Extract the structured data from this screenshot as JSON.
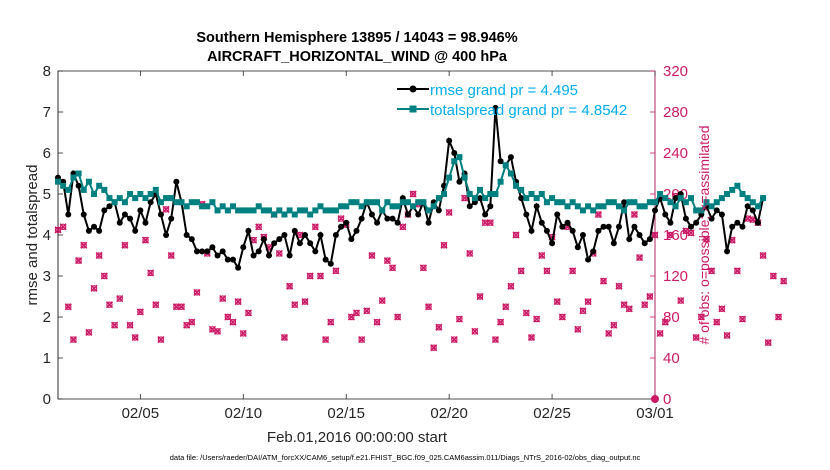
{
  "chart_data": {
    "type": "line",
    "title_line1": "Southern Hemisphere 13895 / 14043 = 98.946%",
    "title_line2": "AIRCRAFT_HORIZONTAL_WIND @ 400 hPa",
    "xlabel": "Feb.01,2016 00:00:00 start",
    "ylabel": "rmse and totalspread",
    "ylabel_right": "# of obs: o=possible; ×=assimilated",
    "footnote": "data file: /Users/raeder/DAI/ATM_forcXX/CAM6_setup/f.e21.FHIST_BGC.f09_025.CAM6assim.011/Diags_NTrS_2016-02/obs_diag_output.nc",
    "xlim": [
      0,
      29
    ],
    "ylim": [
      0,
      8
    ],
    "ylim_right": [
      0,
      320
    ],
    "x_ticks": [
      {
        "day": 4,
        "label": "02/05"
      },
      {
        "day": 9,
        "label": "02/10"
      },
      {
        "day": 14,
        "label": "02/15"
      },
      {
        "day": 19,
        "label": "02/20"
      },
      {
        "day": 24,
        "label": "02/25"
      },
      {
        "day": 29,
        "label": "03/01"
      }
    ],
    "y_ticks": [
      "0",
      "1",
      "2",
      "3",
      "4",
      "5",
      "6",
      "7",
      "8"
    ],
    "y_ticks_right": [
      "0",
      "40",
      "80",
      "120",
      "160",
      "200",
      "240",
      "280",
      "320"
    ],
    "series": [
      {
        "name": "rmse grand pr = 4.495",
        "color": "#000000",
        "x_start": 0,
        "x_step": 0.25,
        "values": [
          5.4,
          5.3,
          4.5,
          5.5,
          5.2,
          4.5,
          4.1,
          4.2,
          4.1,
          4.6,
          4.7,
          4.8,
          4.3,
          4.5,
          4.4,
          4.1,
          4.6,
          4.3,
          4.8,
          5.0,
          4.5,
          4.0,
          4.4,
          5.3,
          4.8,
          4.0,
          3.9,
          3.6,
          3.6,
          3.6,
          3.7,
          3.5,
          3.6,
          3.4,
          3.4,
          3.2,
          3.7,
          4.1,
          3.5,
          3.6,
          3.9,
          3.5,
          3.8,
          3.9,
          4.0,
          3.5,
          4.1,
          3.8,
          4.0,
          3.8,
          3.6,
          4.0,
          3.4,
          3.3,
          4.0,
          4.2,
          4.3,
          3.9,
          4.1,
          4.4,
          4.8,
          4.5,
          4.3,
          4.6,
          4.4,
          4.4,
          4.3,
          4.9,
          4.5,
          4.7,
          4.5,
          4.8,
          4.3,
          4.8,
          4.6,
          5.2,
          6.3,
          6.0,
          5.3,
          5.5,
          4.7,
          4.8,
          4.9,
          4.5,
          4.7,
          7.1,
          5.8,
          5.7,
          5.9,
          5.3,
          4.9,
          4.5,
          4.1,
          4.7,
          4.3,
          4.1,
          3.8,
          4.5,
          4.2,
          4.3,
          4.1,
          3.7,
          4.0,
          3.4,
          3.6,
          4.1,
          4.2,
          4.2,
          3.8,
          4.2,
          4.8,
          3.9,
          4.2,
          4.0,
          3.8,
          3.9,
          4.6,
          4.9,
          4.5,
          4.3,
          4.9,
          5.0,
          4.4,
          4.2,
          4.3,
          4.5,
          4.7,
          4.4,
          4.6,
          4.5,
          3.6,
          4.2,
          4.3,
          4.2,
          4.7,
          4.6,
          4.3,
          4.9
        ]
      },
      {
        "name": "totalspread grand pr = 4.8542",
        "color": "#008080",
        "x_start": 0,
        "x_step": 0.25,
        "values": [
          5.3,
          5.2,
          5.1,
          5.4,
          5.5,
          5.1,
          5.3,
          5.0,
          5.2,
          5.1,
          4.9,
          4.8,
          4.9,
          4.8,
          5.0,
          4.9,
          5.0,
          4.9,
          5.0,
          5.1,
          4.8,
          4.9,
          4.9,
          4.8,
          4.8,
          4.7,
          4.8,
          4.8,
          4.7,
          4.7,
          4.8,
          4.6,
          4.7,
          4.6,
          4.7,
          4.6,
          4.6,
          4.6,
          4.6,
          4.7,
          4.6,
          4.6,
          4.5,
          4.6,
          4.5,
          4.6,
          4.5,
          4.6,
          4.6,
          4.5,
          4.6,
          4.7,
          4.6,
          4.6,
          4.6,
          4.7,
          4.7,
          4.8,
          4.8,
          4.7,
          4.8,
          4.8,
          4.8,
          4.6,
          4.8,
          4.7,
          4.7,
          4.8,
          4.8,
          4.7,
          4.8,
          4.8,
          4.6,
          4.7,
          4.9,
          5.0,
          5.4,
          5.8,
          5.9,
          5.4,
          5.0,
          4.9,
          5.1,
          4.9,
          5.0,
          5.0,
          5.3,
          5.7,
          5.5,
          5.2,
          5.1,
          4.9,
          5.0,
          4.9,
          5.0,
          4.8,
          4.9,
          4.8,
          4.8,
          4.7,
          4.8,
          4.7,
          4.6,
          4.7,
          4.6,
          4.7,
          4.7,
          4.8,
          4.8,
          4.7,
          4.6,
          4.8,
          4.8,
          4.7,
          4.7,
          4.8,
          4.8,
          5.0,
          4.9,
          4.8,
          4.7,
          4.9,
          4.8,
          4.9,
          4.6,
          4.6,
          4.8,
          4.7,
          4.8,
          4.9,
          5.0,
          5.1,
          5.2,
          5.0,
          4.9,
          4.8,
          4.7,
          4.9
        ]
      }
    ],
    "obs_series": {
      "axis": "right",
      "color": "#cc1a66",
      "x_start": 0,
      "x_step": 0.25,
      "possible": [
        165,
        168,
        90,
        58,
        135,
        150,
        65,
        108,
        140,
        120,
        92,
        72,
        98,
        150,
        72,
        60,
        85,
        155,
        123,
        92,
        58,
        185,
        140,
        90,
        90,
        72,
        75,
        104,
        190,
        142,
        68,
        66,
        98,
        80,
        75,
        95,
        64,
        84,
        155,
        168,
        158,
        148,
        180,
        142,
        60,
        110,
        92,
        160,
        95,
        120,
        168,
        120,
        58,
        75,
        125,
        176,
        170,
        80,
        84,
        58,
        86,
        140,
        75,
        96,
        135,
        128,
        80,
        168,
        180,
        200,
        190,
        128,
        90,
        50,
        70,
        150,
        182,
        58,
        78,
        196,
        142,
        66,
        100,
        172,
        172,
        58,
        75,
        90,
        110,
        160,
        125,
        84,
        60,
        78,
        140,
        125,
        158,
        95,
        80,
        168,
        125,
        68,
        86,
        95,
        142,
        180,
        115,
        64,
        72,
        110,
        92,
        88,
        180,
        138,
        92,
        100,
        160,
        64,
        75,
        160,
        198,
        96,
        164,
        162,
        60,
        80,
        156,
        125,
        75,
        88,
        62,
        155,
        125,
        78,
        176,
        175,
        172,
        140,
        55,
        120,
        80,
        115
      ],
      "assimilated": [
        165,
        168,
        90,
        58,
        135,
        150,
        65,
        108,
        140,
        120,
        92,
        72,
        98,
        150,
        72,
        60,
        85,
        155,
        123,
        92,
        58,
        185,
        140,
        90,
        90,
        72,
        75,
        104,
        190,
        142,
        68,
        66,
        98,
        80,
        75,
        95,
        64,
        84,
        155,
        168,
        158,
        148,
        180,
        142,
        60,
        110,
        92,
        160,
        95,
        120,
        168,
        120,
        58,
        75,
        125,
        176,
        170,
        80,
        84,
        58,
        86,
        140,
        75,
        96,
        135,
        128,
        80,
        168,
        180,
        200,
        190,
        128,
        90,
        50,
        70,
        150,
        182,
        58,
        78,
        196,
        142,
        66,
        100,
        172,
        172,
        58,
        75,
        90,
        110,
        160,
        125,
        84,
        60,
        78,
        140,
        125,
        158,
        95,
        80,
        168,
        125,
        68,
        86,
        95,
        142,
        180,
        115,
        64,
        72,
        110,
        92,
        88,
        180,
        138,
        92,
        100,
        160,
        64,
        75,
        160,
        198,
        96,
        164,
        162,
        60,
        80,
        156,
        125,
        75,
        88,
        62,
        155,
        125,
        78,
        176,
        175,
        172,
        140,
        55,
        120,
        80,
        115
      ]
    }
  }
}
